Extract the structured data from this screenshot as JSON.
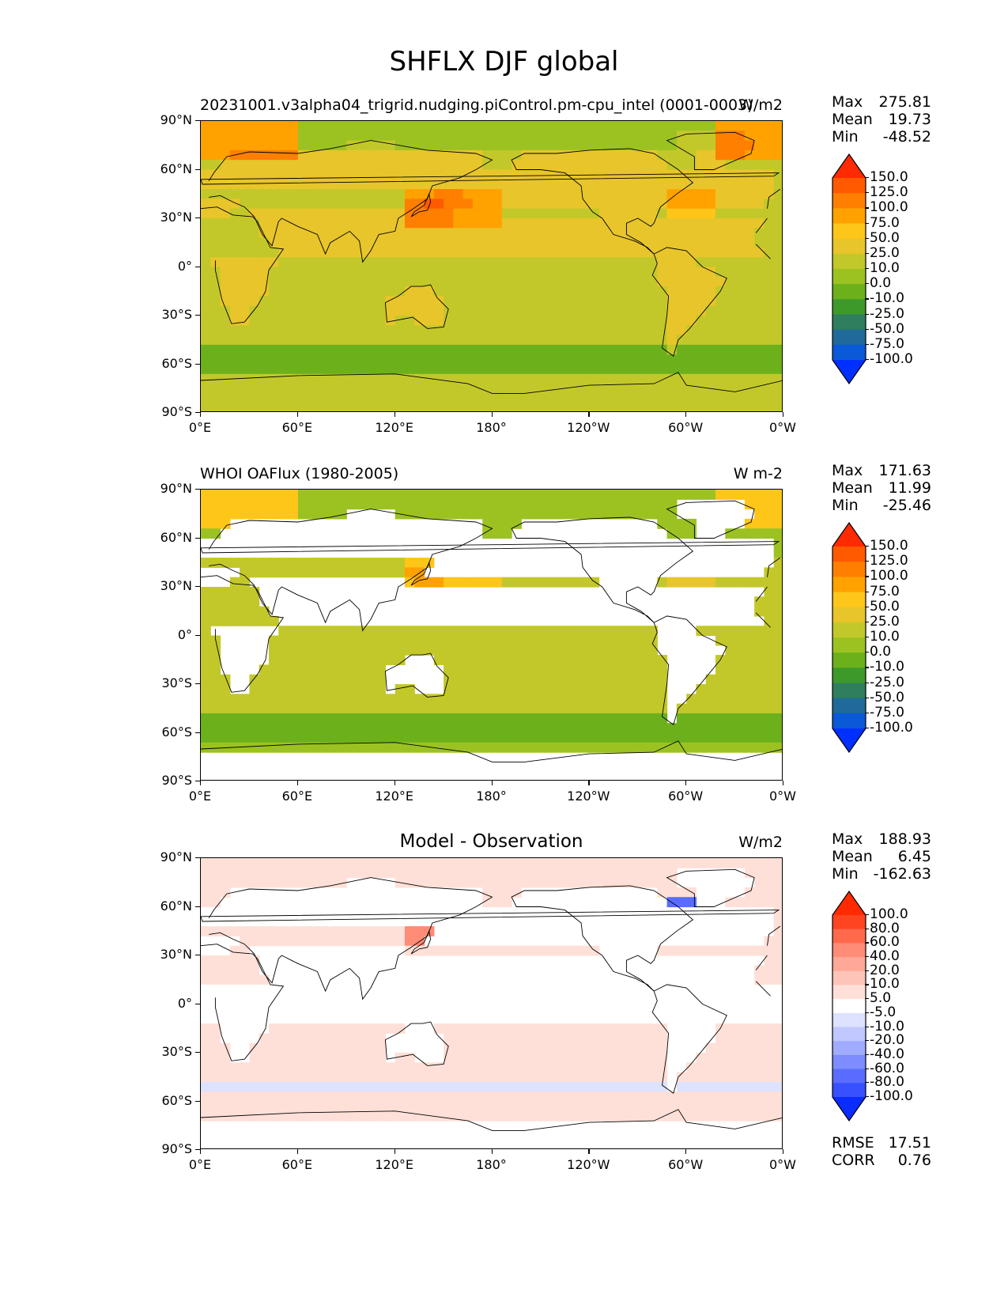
{
  "suptitle": "SHFLX DJF global",
  "chart_data": [
    {
      "type": "heatmap",
      "title": "",
      "left_title": "20231001.v3alpha04_trigrid.nudging.piControl.pm-cpu_intel (0001-0003)",
      "units": "W/m2",
      "xticks": [
        "0°E",
        "60°E",
        "120°E",
        "180°",
        "120°W",
        "60°W",
        "0°W"
      ],
      "yticks": [
        "90°N",
        "60°N",
        "30°N",
        "0°",
        "30°S",
        "60°S",
        "90°S"
      ],
      "xlim": [
        0,
        360
      ],
      "ylim": [
        -90,
        90
      ],
      "stats": {
        "max_label": "Max",
        "max": "275.81",
        "mean_label": "Mean",
        "mean": "19.73",
        "min_label": "Min",
        "min": "-48.52"
      },
      "colorbar": {
        "levels": [
          "150.0",
          "125.0",
          "100.0",
          "75.0",
          "50.0",
          "25.0",
          "10.0",
          "0.0",
          "-10.0",
          "-25.0",
          "-50.0",
          "-75.0",
          "-100.0"
        ],
        "colors": [
          "#ff2a00",
          "#ff5a00",
          "#ff7f00",
          "#ffa200",
          "#ffc61a",
          "#e8c52a",
          "#c3c82a",
          "#9cc222",
          "#6cb11c",
          "#3d9a2a",
          "#2f7f5e",
          "#1f6a9a",
          "#0a5ad8",
          "#0030ff"
        ]
      }
    },
    {
      "type": "heatmap",
      "title": "",
      "left_title": "WHOI OAFlux (1980-2005)",
      "units": "W m-2",
      "xticks": [
        "0°E",
        "60°E",
        "120°E",
        "180°",
        "120°W",
        "60°W",
        "0°W"
      ],
      "yticks": [
        "90°N",
        "60°N",
        "30°N",
        "0°",
        "30°S",
        "60°S",
        "90°S"
      ],
      "xlim": [
        0,
        360
      ],
      "ylim": [
        -90,
        90
      ],
      "stats": {
        "max_label": "Max",
        "max": "171.63",
        "mean_label": "Mean",
        "mean": "11.99",
        "min_label": "Min",
        "min": "-25.46"
      },
      "colorbar": {
        "levels": [
          "150.0",
          "125.0",
          "100.0",
          "75.0",
          "50.0",
          "25.0",
          "10.0",
          "0.0",
          "-10.0",
          "-25.0",
          "-50.0",
          "-75.0",
          "-100.0"
        ],
        "colors": [
          "#ff2a00",
          "#ff5a00",
          "#ff7f00",
          "#ffa200",
          "#ffc61a",
          "#e8c52a",
          "#c3c82a",
          "#9cc222",
          "#6cb11c",
          "#3d9a2a",
          "#2f7f5e",
          "#1f6a9a",
          "#0a5ad8",
          "#0030ff"
        ]
      }
    },
    {
      "type": "heatmap",
      "title": "Model - Observation",
      "left_title": "",
      "units": "W/m2",
      "xticks": [
        "0°E",
        "60°E",
        "120°E",
        "180°",
        "120°W",
        "60°W",
        "0°W"
      ],
      "yticks": [
        "90°N",
        "60°N",
        "30°N",
        "0°",
        "30°S",
        "60°S",
        "90°S"
      ],
      "xlim": [
        0,
        360
      ],
      "ylim": [
        -90,
        90
      ],
      "stats": {
        "max_label": "Max",
        "max": "188.93",
        "mean_label": "Mean",
        "mean": "6.45",
        "min_label": "Min",
        "min": "-162.63"
      },
      "extra_stats": {
        "rmse_label": "RMSE",
        "rmse": "17.51",
        "corr_label": "CORR",
        "corr": "0.76"
      },
      "colorbar": {
        "levels": [
          "100.0",
          "80.0",
          "60.0",
          "40.0",
          "20.0",
          "10.0",
          "5.0",
          "-5.0",
          "-10.0",
          "-20.0",
          "-40.0",
          "-60.0",
          "-80.0",
          "-100.0"
        ],
        "colors": [
          "#ff2a00",
          "#ff4422",
          "#ff6a4a",
          "#ff8c76",
          "#ffa898",
          "#ffc4b8",
          "#ffe0d8",
          "#ffffff",
          "#dde2ff",
          "#c0c8ff",
          "#a0acff",
          "#7d8cff",
          "#5a6cff",
          "#3850ff",
          "#0a2cff"
        ]
      }
    }
  ]
}
